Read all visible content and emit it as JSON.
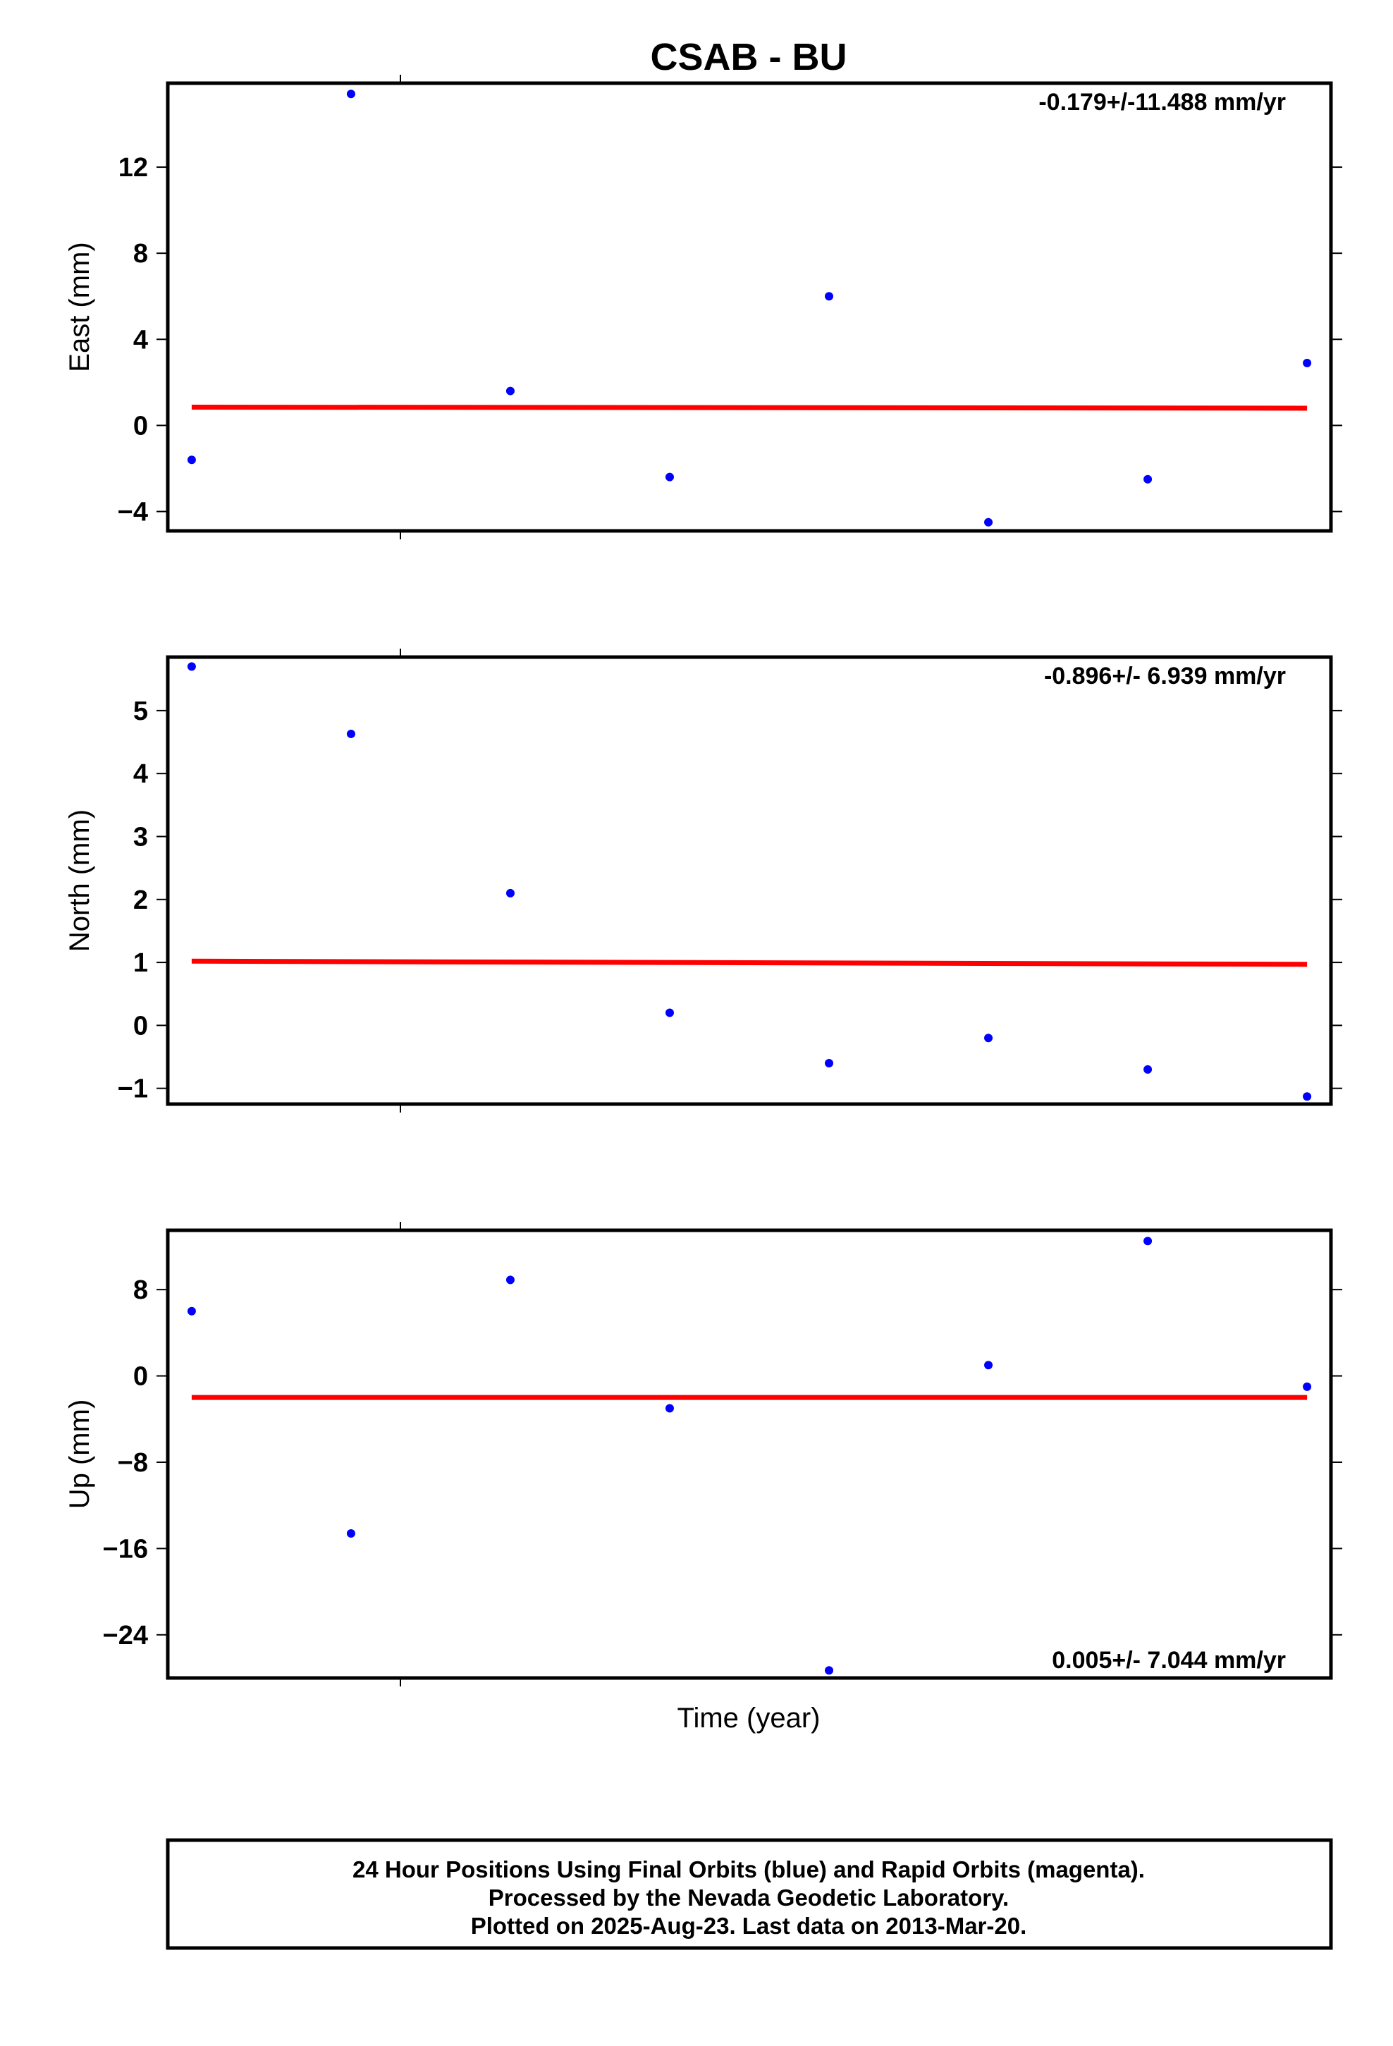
{
  "chart_data": {
    "type": "scatter",
    "title": "CSAB - BU",
    "xlabel": "Time (year)",
    "colors": {
      "final_orbits": "#0000ff",
      "trend": "#ff0000",
      "frame": "#000000"
    },
    "panels": [
      {
        "name": "east",
        "ylabel": "East (mm)",
        "ylim": [
          -4.9,
          15.9
        ],
        "yticks": [
          12,
          8,
          4,
          0,
          -4
        ],
        "ytick_labels": [
          "12",
          "8",
          "4",
          "0",
          "−4"
        ],
        "rate_label": "-0.179+/-11.488 mm/yr",
        "rate_position": "top-right",
        "points": [
          [
            1,
            -1.6
          ],
          [
            2,
            15.4
          ],
          [
            3,
            1.6
          ],
          [
            4,
            -2.4
          ],
          [
            5,
            6.0
          ],
          [
            6,
            -4.5
          ],
          [
            7,
            -2.5
          ],
          [
            8,
            2.9
          ]
        ],
        "trend": [
          [
            1,
            0.85
          ],
          [
            8,
            0.8
          ]
        ]
      },
      {
        "name": "north",
        "ylabel": "North (mm)",
        "ylim": [
          -1.25,
          5.85
        ],
        "yticks": [
          5,
          4,
          3,
          2,
          1,
          0,
          -1
        ],
        "ytick_labels": [
          "5",
          "4",
          "3",
          "2",
          "1",
          "0",
          "−1"
        ],
        "rate_label": "-0.896+/- 6.939 mm/yr",
        "rate_position": "top-right",
        "points": [
          [
            1,
            5.7
          ],
          [
            2,
            4.63
          ],
          [
            3,
            2.1
          ],
          [
            4,
            0.2
          ],
          [
            5,
            -0.6
          ],
          [
            6,
            -0.2
          ],
          [
            7,
            -0.7
          ],
          [
            8,
            -1.13
          ]
        ],
        "trend": [
          [
            1,
            1.02
          ],
          [
            8,
            0.97
          ]
        ]
      },
      {
        "name": "up",
        "ylabel": "Up (mm)",
        "ylim": [
          -28.0,
          13.5
        ],
        "yticks": [
          8,
          0,
          -8,
          -16,
          -24
        ],
        "ytick_labels": [
          "8",
          "0",
          "−8",
          "−16",
          "−24"
        ],
        "rate_label": "0.005+/- 7.044 mm/yr",
        "rate_position": "bottom-right",
        "points": [
          [
            1,
            6.0
          ],
          [
            2,
            -14.6
          ],
          [
            3,
            8.9
          ],
          [
            4,
            -3.0
          ],
          [
            5,
            -27.3
          ],
          [
            6,
            1.0
          ],
          [
            7,
            12.5
          ],
          [
            8,
            -1.0
          ]
        ],
        "trend": [
          [
            1,
            -2.0
          ],
          [
            8,
            -2.0
          ]
        ]
      }
    ],
    "xlim": [
      0.85,
      8.15
    ],
    "footer": [
      "24 Hour Positions Using Final Orbits (blue) and Rapid Orbits (magenta).",
      "Processed by the Nevada Geodetic Laboratory.",
      "Plotted on 2025-Aug-23. Last data on 2013-Mar-20."
    ]
  }
}
